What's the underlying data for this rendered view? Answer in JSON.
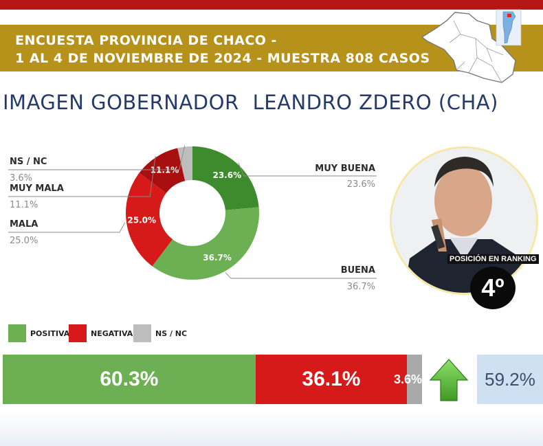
{
  "header": {
    "line1": "ENCUESTA PROVINCIA DE CHACO -",
    "line2": "1 AL 4 DE NOVIEMBRE DE 2024 - MUESTRA 808 CASOS"
  },
  "title": {
    "left": "IMAGEN GOBERNADOR",
    "right": "LEANDRO ZDERO (CHA)"
  },
  "colors": {
    "header_gold": "#b7921b",
    "top_red": "#b51616",
    "muy_buena": "#3d8b2c",
    "buena": "#6db054",
    "mala": "#d61a1a",
    "muy_mala": "#a81010",
    "ns_nc": "#bdbdbd",
    "title_blue": "#243a6a"
  },
  "chart_data": [
    {
      "type": "pie",
      "variant": "donut",
      "slices": [
        {
          "label": "MUY BUENA",
          "value": 23.6,
          "display": "23.6%",
          "color": "#3d8b2c"
        },
        {
          "label": "BUENA",
          "value": 36.7,
          "display": "36.7%",
          "color": "#6db054"
        },
        {
          "label": "MALA",
          "value": 25.0,
          "display": "25.0%",
          "color": "#d61a1a"
        },
        {
          "label": "MUY MALA",
          "value": 11.1,
          "display": "11.1%",
          "color": "#a81010"
        },
        {
          "label": "NS / NC",
          "value": 3.6,
          "display": "3.6%",
          "color": "#bdbdbd"
        }
      ]
    },
    {
      "type": "bar",
      "variant": "stacked-horizontal",
      "legend": [
        "POSITIVA",
        "NEGATIVA",
        "NS / NC"
      ],
      "legend_position": "top-left",
      "segments": [
        {
          "label": "POSITIVA",
          "value": 60.3,
          "display": "60.3%",
          "color": "#6db054"
        },
        {
          "label": "NEGATIVA",
          "value": 36.1,
          "display": "36.1%",
          "color": "#d61a1a"
        },
        {
          "label": "NS / NC",
          "value": 3.6,
          "display": "3.6%",
          "color": "#a9a9a9"
        }
      ]
    }
  ],
  "tendency": {
    "icon": "up-arrow-icon",
    "value": "59.2%"
  },
  "ranking": {
    "label": "POSICIÓN EN RANKING",
    "position": "4º"
  }
}
